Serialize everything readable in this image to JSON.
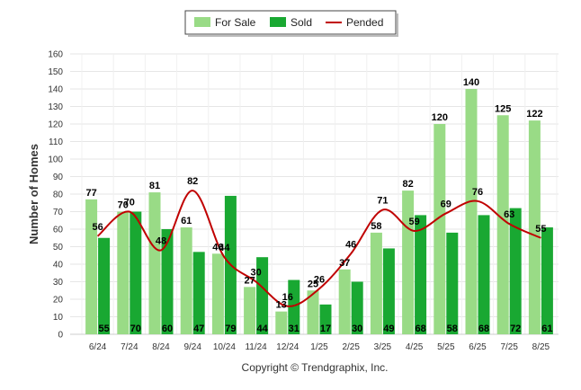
{
  "chart_data": {
    "type": "bar",
    "categories": [
      "6/24",
      "7/24",
      "8/24",
      "9/24",
      "10/24",
      "11/24",
      "12/24",
      "1/25",
      "2/25",
      "3/25",
      "4/25",
      "5/25",
      "6/25",
      "7/25",
      "8/25"
    ],
    "series": [
      {
        "name": "For Sale",
        "type": "bar",
        "color": "#99db86",
        "values": [
          77,
          70,
          81,
          61,
          46,
          27,
          13,
          25,
          37,
          58,
          82,
          120,
          140,
          125,
          122
        ]
      },
      {
        "name": "Sold",
        "type": "bar",
        "color": "#19a832",
        "values": [
          55,
          70,
          60,
          47,
          79,
          44,
          31,
          17,
          30,
          49,
          68,
          58,
          68,
          72,
          61
        ]
      },
      {
        "name": "Pended",
        "type": "line",
        "color": "#c00000",
        "values": [
          56,
          70,
          48,
          82,
          44,
          30,
          16,
          26,
          46,
          71,
          59,
          69,
          76,
          63,
          55
        ]
      }
    ],
    "ylabel": "Number of Homes",
    "xlabel": "",
    "ylim": [
      0,
      160
    ],
    "yticks": [
      0,
      10,
      20,
      30,
      40,
      50,
      60,
      70,
      80,
      90,
      100,
      110,
      120,
      130,
      140,
      150,
      160
    ],
    "grid": true,
    "legend": "top-center"
  },
  "footer": {
    "copyright": "Copyright © Trendgraphix, Inc."
  }
}
